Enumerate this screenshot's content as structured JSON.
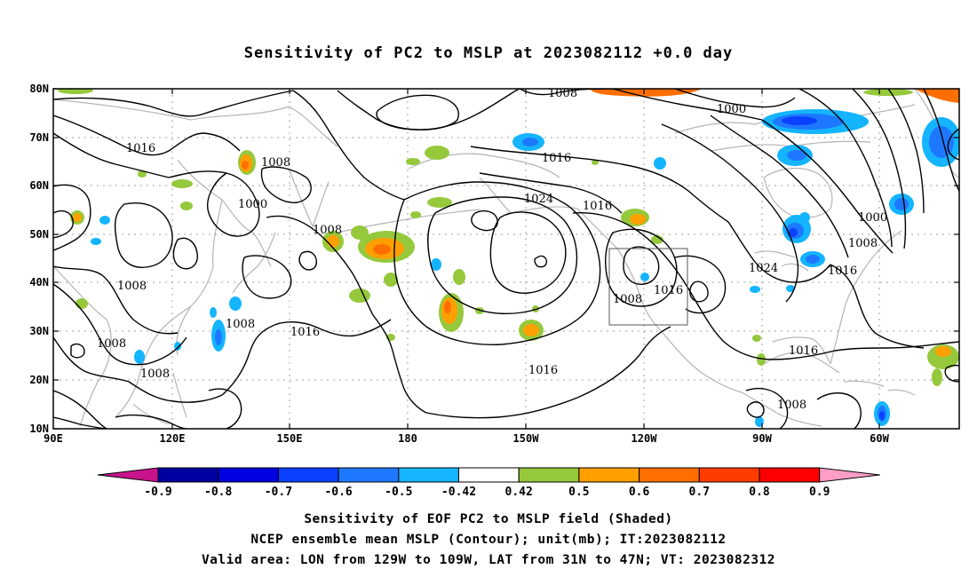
{
  "title": "Sensitivity of PC2 to MSLP at 2023082112 +0.0 day",
  "map": {
    "lon_range": [
      "90E",
      "40W"
    ],
    "lat_range": [
      "10N",
      "80N"
    ],
    "lat_labels": [
      "80N",
      "70N",
      "60N",
      "50N",
      "40N",
      "30N",
      "20N",
      "10N"
    ],
    "lon_labels": [
      "90E",
      "120E",
      "150E",
      "180",
      "150W",
      "120W",
      "90W",
      "60W"
    ],
    "contour_labels": [
      {
        "text": "1008"
      },
      {
        "text": "1016"
      },
      {
        "text": "1008"
      },
      {
        "text": "1000"
      },
      {
        "text": "1008"
      },
      {
        "text": "1008"
      },
      {
        "text": "1008"
      },
      {
        "text": "1008"
      },
      {
        "text": "1016"
      },
      {
        "text": "1008"
      },
      {
        "text": "1024"
      },
      {
        "text": "1016"
      },
      {
        "text": "1016"
      },
      {
        "text": "1000"
      },
      {
        "text": "1016"
      },
      {
        "text": "1008"
      },
      {
        "text": "1016"
      },
      {
        "text": "1000"
      },
      {
        "text": "1008"
      },
      {
        "text": "1024"
      },
      {
        "text": "1016"
      },
      {
        "text": "1016"
      },
      {
        "text": "1008"
      }
    ],
    "valid_area_box": {
      "lon_from": "129W",
      "lon_to": "109W",
      "lat_from": "31N",
      "lat_to": "47N"
    }
  },
  "colorbar": {
    "labels": [
      "-0.9",
      "-0.8",
      "-0.7",
      "-0.6",
      "-0.5",
      "-0.42",
      "0.42",
      "0.5",
      "0.6",
      "0.7",
      "0.8",
      "0.9"
    ],
    "colors": [
      "#0000a0",
      "#0000e0",
      "#0a40ff",
      "#1e78ff",
      "#14b4ff",
      "#ffffff",
      "#96c83c",
      "#ffa000",
      "#ff6e00",
      "#ff3c00",
      "#ff0000"
    ],
    "left_arrow_color": "#c8148c",
    "right_arrow_color": "#ff9ec8"
  },
  "footer": {
    "line1": "Sensitivity of EOF PC2 to MSLP field (Shaded)",
    "line2": "NCEP ensemble mean MSLP (Contour); unit(mb); IT:2023082112",
    "line3": "Valid area: LON from 129W to 109W, LAT from 31N to 47N; VT: 2023082312"
  }
}
